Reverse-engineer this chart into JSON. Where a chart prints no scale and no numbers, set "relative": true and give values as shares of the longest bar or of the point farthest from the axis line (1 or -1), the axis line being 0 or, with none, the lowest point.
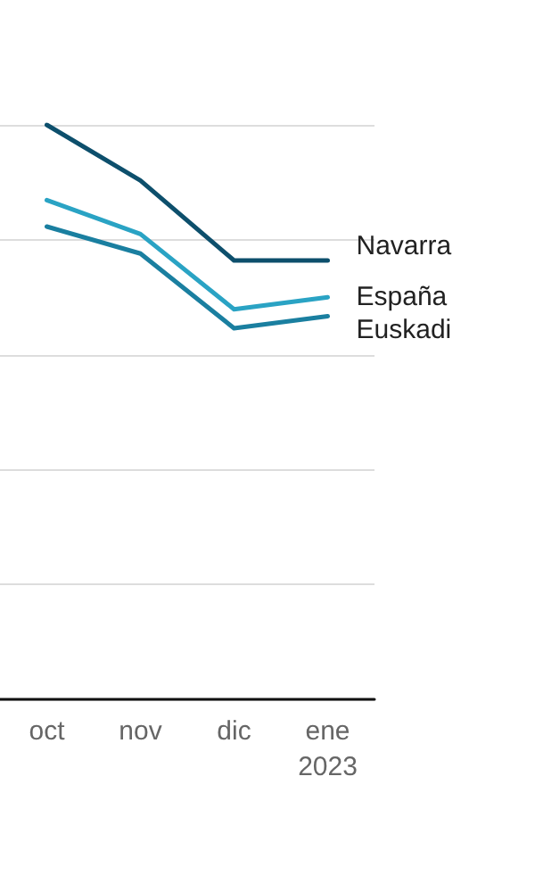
{
  "chart_data": {
    "type": "line",
    "relative": true,
    "categories": [
      "oct",
      "nov",
      "dic",
      "ene\n2023"
    ],
    "series": [
      {
        "name": "Navarra",
        "color": "#0d4f6c",
        "values": [
          1,
          0.903,
          0.764,
          0.764
        ]
      },
      {
        "name": "España",
        "color": "#2aa3c4",
        "values": [
          0.869,
          0.81,
          0.679,
          0.7
        ]
      },
      {
        "name": "Euskadi",
        "color": "#1a7fa0",
        "values": [
          0.823,
          0.776,
          0.646,
          0.667
        ]
      }
    ],
    "grid": "y",
    "legend": false,
    "marker": "none",
    "line_style": "solid"
  }
}
